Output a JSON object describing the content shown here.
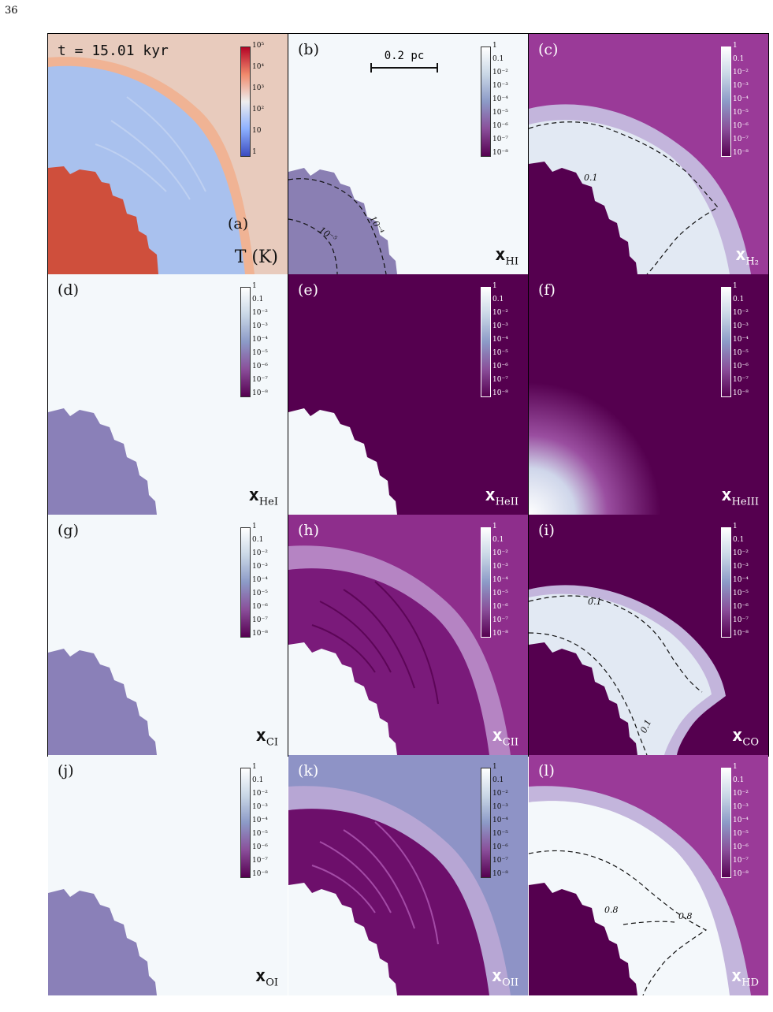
{
  "page": {
    "number": "36"
  },
  "figure": {
    "time_label": "t = 15.01 kyr",
    "scale_bar": "0.2 pc",
    "temp_colorbar_ticks": [
      "10⁵",
      "10⁴",
      "10³",
      "10²",
      "10",
      "1"
    ],
    "frac_colorbar_ticks": [
      "1",
      "0.1",
      "10⁻²",
      "10⁻³",
      "10⁻⁴",
      "10⁻⁵",
      "10⁻⁶",
      "10⁻⁷",
      "10⁻⁸"
    ],
    "panels": [
      {
        "id": "a",
        "label": "(a)",
        "quantity": "T (K)",
        "sub": ""
      },
      {
        "id": "b",
        "label": "(b)",
        "quantity": "x",
        "sub": "HI",
        "contours": [
          "10⁻⁴",
          "10⁻⁵"
        ]
      },
      {
        "id": "c",
        "label": "(c)",
        "quantity": "x",
        "sub": "H₂",
        "contours": [
          "0.1"
        ]
      },
      {
        "id": "d",
        "label": "(d)",
        "quantity": "x",
        "sub": "HeI"
      },
      {
        "id": "e",
        "label": "(e)",
        "quantity": "x",
        "sub": "HeII"
      },
      {
        "id": "f",
        "label": "(f)",
        "quantity": "x",
        "sub": "HeIII"
      },
      {
        "id": "g",
        "label": "(g)",
        "quantity": "x",
        "sub": "CI"
      },
      {
        "id": "h",
        "label": "(h)",
        "quantity": "x",
        "sub": "CII"
      },
      {
        "id": "i",
        "label": "(i)",
        "quantity": "x",
        "sub": "CO",
        "contours": [
          "0.1",
          "0.1"
        ]
      },
      {
        "id": "j",
        "label": "(j)",
        "quantity": "x",
        "sub": "OI"
      },
      {
        "id": "k",
        "label": "(k)",
        "quantity": "x",
        "sub": "OII"
      },
      {
        "id": "l",
        "label": "(l)",
        "quantity": "x",
        "sub": "HD",
        "contours": [
          "0.8",
          "0.8"
        ]
      }
    ]
  },
  "colors": {
    "hot": "#cf4f3c",
    "warm_bg": "#e8cbbd",
    "cool": "#a9c1ee",
    "white_region": "#f4f8fb",
    "purple_deep": "#55004f",
    "purple_mid": "#8b3c8e",
    "lavender": "#8e93c6"
  }
}
